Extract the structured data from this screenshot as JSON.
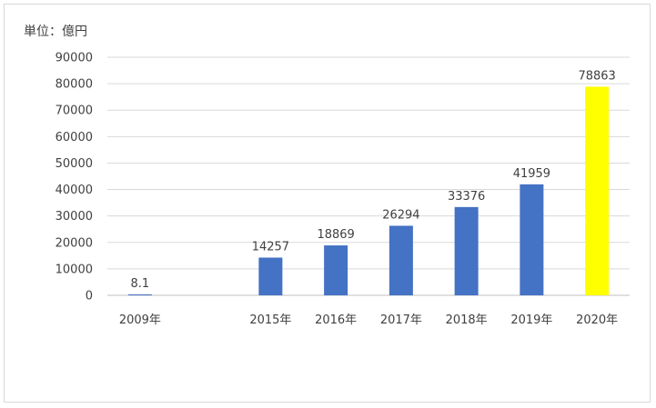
{
  "chart_data": {
    "type": "bar",
    "unit_label": "単位：億円",
    "categories": [
      "2009年",
      "",
      "2015年",
      "2016年",
      "2017年",
      "2018年",
      "2019年",
      "2020年"
    ],
    "values": [
      8.1,
      null,
      14257,
      18869,
      26294,
      33376,
      41959,
      78863
    ],
    "data_labels": [
      "8.1",
      "",
      "14257",
      "18869",
      "26294",
      "33376",
      "41959",
      "78863"
    ],
    "ylim": [
      0,
      90000
    ],
    "yticks": [
      0,
      10000,
      20000,
      30000,
      40000,
      50000,
      60000,
      70000,
      80000,
      90000
    ],
    "ytick_labels": [
      "0",
      "10000",
      "20000",
      "30000",
      "40000",
      "50000",
      "60000",
      "70000",
      "80000",
      "90000"
    ],
    "grid": true,
    "colors": {
      "bar": "#4472c4",
      "highlight": "#ffff00",
      "grid": "#d9d9d9",
      "axis": "#bfbfbf",
      "text": "#404040"
    },
    "highlight_index": 7
  }
}
